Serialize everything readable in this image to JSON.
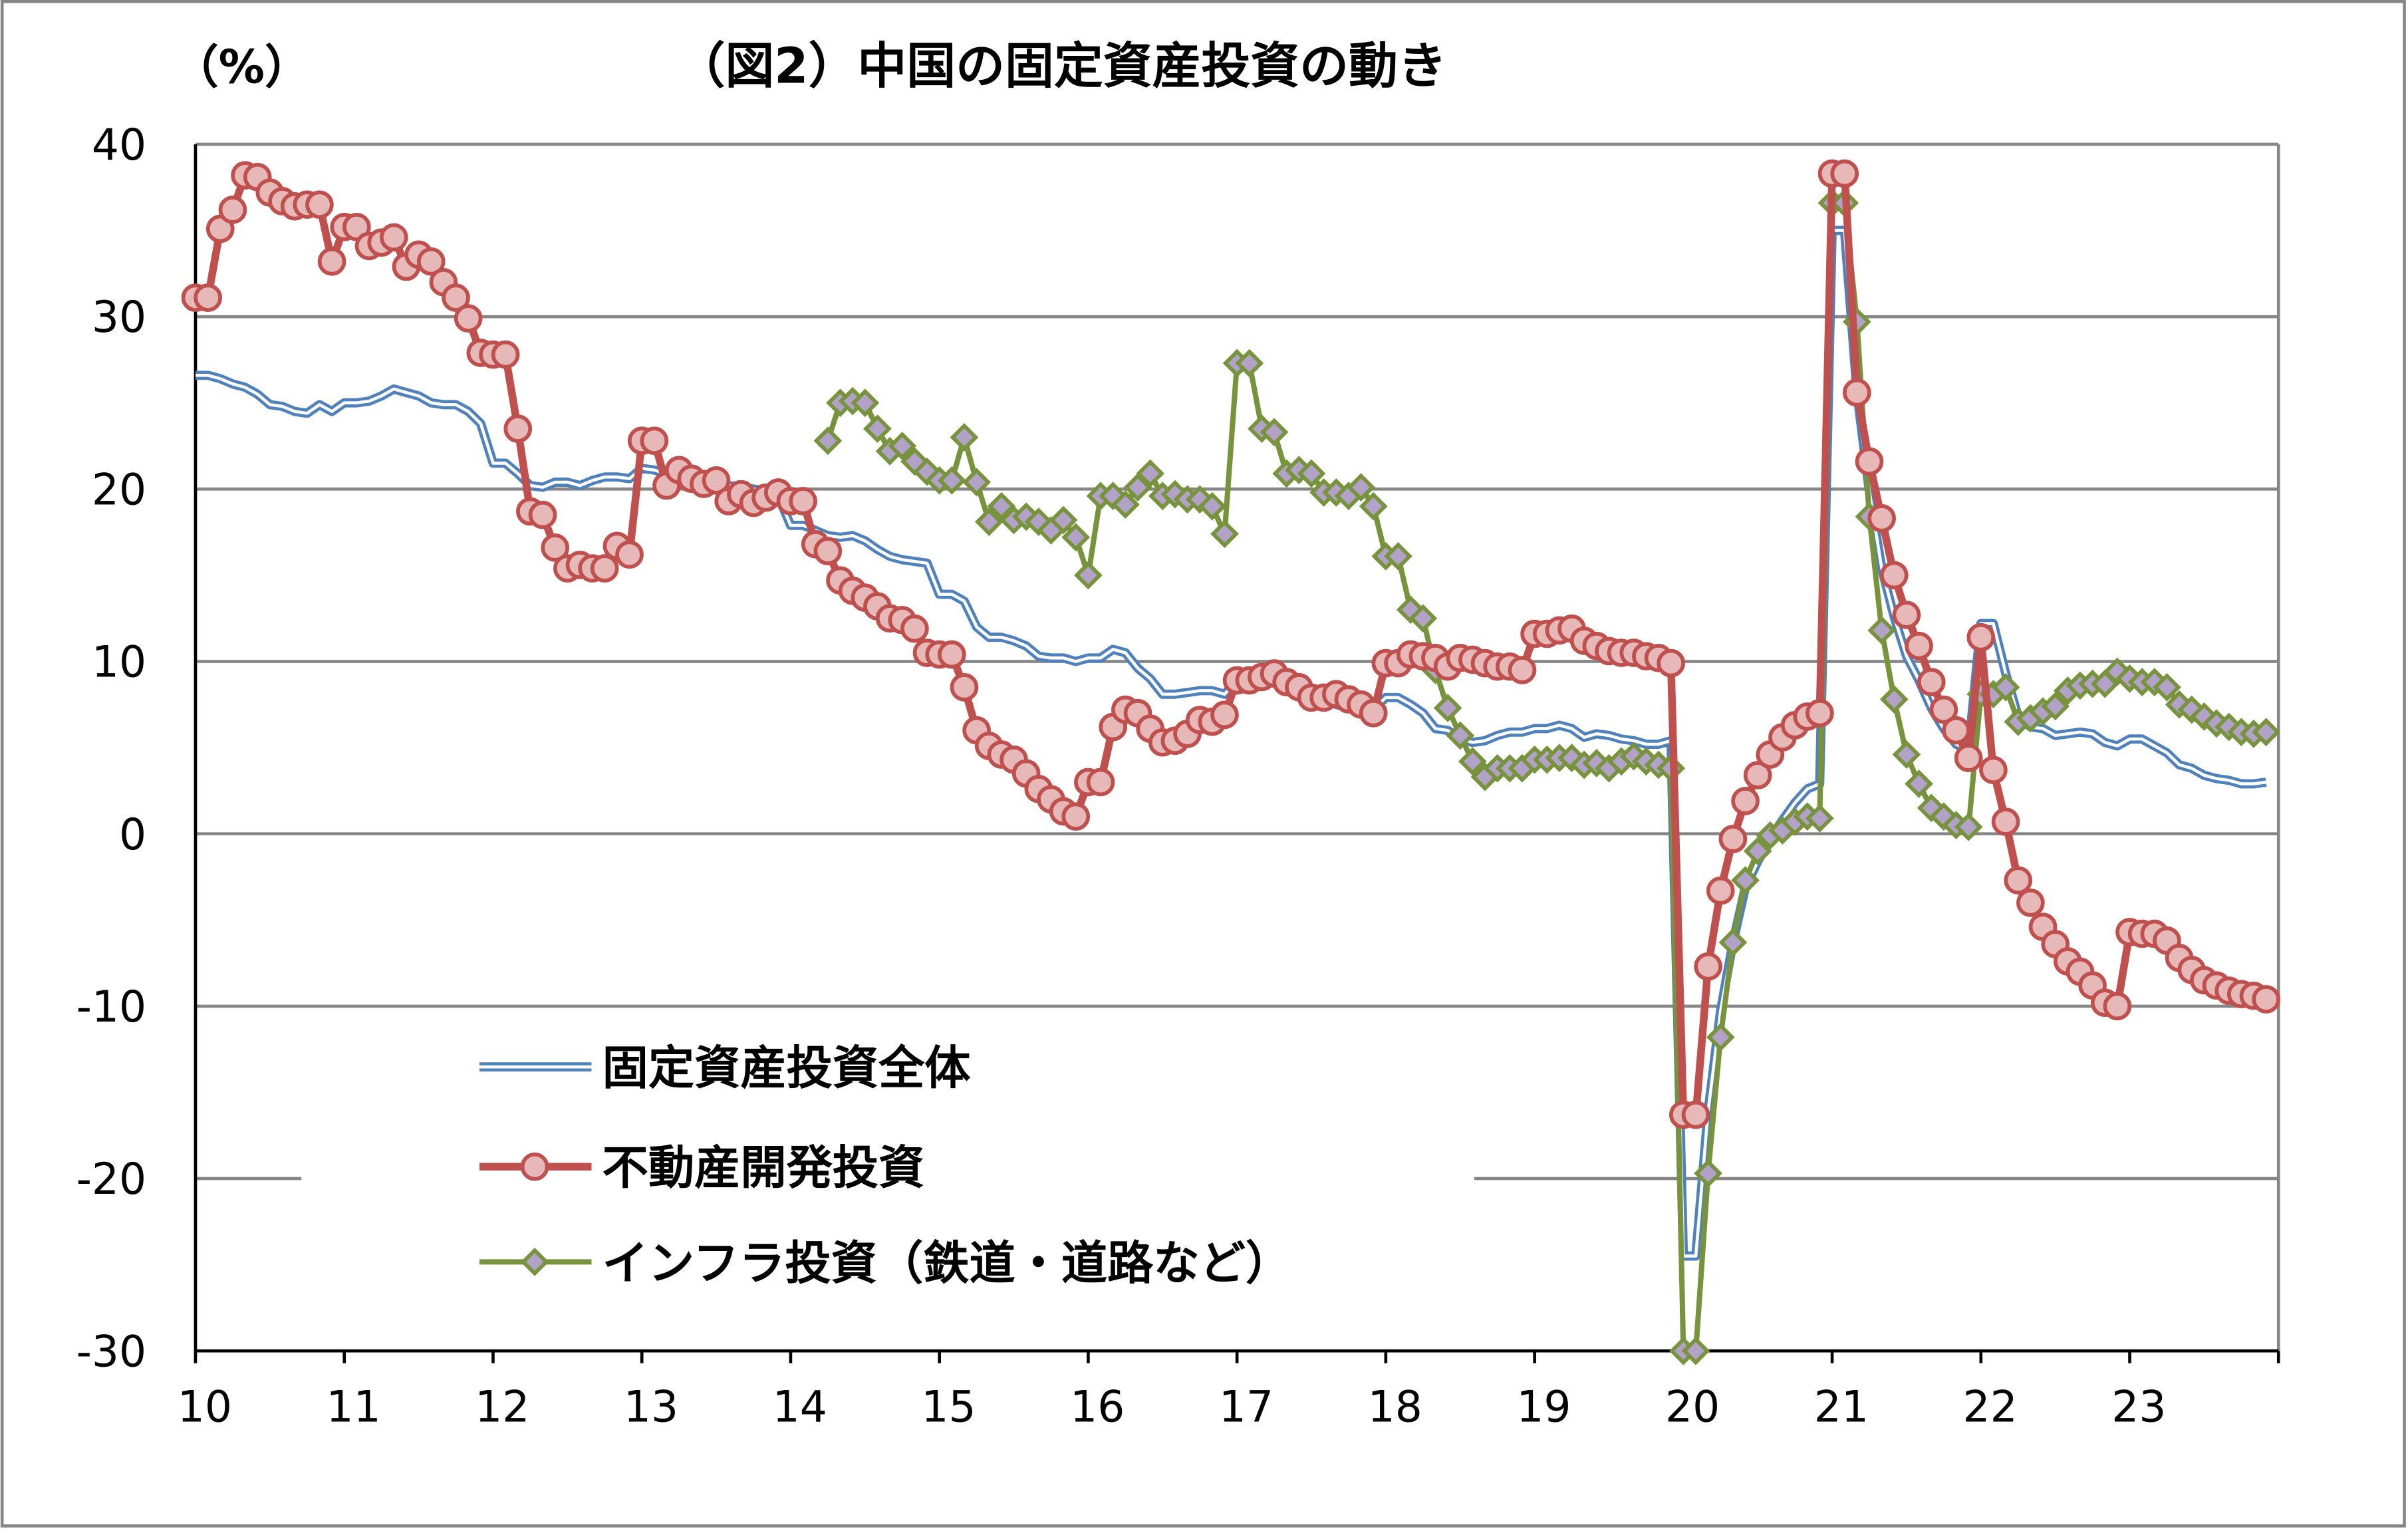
{
  "chart_data": {
    "type": "line",
    "title": "（図2）中国の固定資産投資の動き",
    "ylabel": "（%）",
    "xlabel": "",
    "ylim": [
      -30,
      40
    ],
    "yticks": [
      "40",
      "30",
      "20",
      "10",
      "0",
      "-10",
      "-20",
      "-30"
    ],
    "xticks": [
      "10",
      "11",
      "12",
      "13",
      "14",
      "15",
      "16",
      "17",
      "18",
      "19",
      "20",
      "21",
      "22",
      "23"
    ],
    "xlim": [
      "2010-01",
      "2024-01"
    ],
    "grid": "horizontal",
    "legend_placement": "bottom-left",
    "series": [
      {
        "name": "固定資産投資全体",
        "color": "#4F81BD",
        "style": "double-line",
        "start": "2010-01",
        "values": [
          26.6,
          26.6,
          26.4,
          26.1,
          25.9,
          25.5,
          24.9,
          24.8,
          24.5,
          24.4,
          24.9,
          24.5,
          25.0,
          25.0,
          25.1,
          25.4,
          25.8,
          25.6,
          25.4,
          25.0,
          24.9,
          24.9,
          24.5,
          23.8,
          21.5,
          21.5,
          20.9,
          20.2,
          20.1,
          20.4,
          20.4,
          20.2,
          20.5,
          20.7,
          20.7,
          20.6,
          21.2,
          21.1,
          20.9,
          20.6,
          20.4,
          20.1,
          20.3,
          20.2,
          20.1,
          20.0,
          19.9,
          19.6,
          17.9,
          17.9,
          17.6,
          17.3,
          17.2,
          17.3,
          17.0,
          16.5,
          16.1,
          15.9,
          15.8,
          15.7,
          13.9,
          13.9,
          13.5,
          12.0,
          11.4,
          11.4,
          11.2,
          10.9,
          10.3,
          10.2,
          10.2,
          10.0,
          10.2,
          10.2,
          10.7,
          10.5,
          9.6,
          9.0,
          8.1,
          8.1,
          8.2,
          8.3,
          8.3,
          8.1,
          8.9,
          8.9,
          9.2,
          8.9,
          8.6,
          8.6,
          8.3,
          7.8,
          7.5,
          7.3,
          7.2,
          7.2,
          7.9,
          7.9,
          7.5,
          7.0,
          6.1,
          6.0,
          5.5,
          5.3,
          5.4,
          5.7,
          5.9,
          5.9,
          6.1,
          6.1,
          6.3,
          6.1,
          5.6,
          5.8,
          5.7,
          5.5,
          5.4,
          5.2,
          5.2,
          5.4,
          -24.5,
          -24.5,
          -16.1,
          -10.3,
          -6.3,
          -3.1,
          -1.6,
          -0.3,
          0.8,
          1.8,
          2.6,
          2.9,
          35.0,
          35.0,
          25.6,
          19.9,
          15.4,
          12.6,
          10.3,
          8.9,
          7.3,
          6.1,
          5.2,
          4.9,
          12.2,
          12.2,
          9.3,
          6.8,
          6.2,
          6.1,
          5.7,
          5.8,
          5.9,
          5.8,
          5.3,
          5.1,
          5.5,
          5.5,
          5.1,
          4.7,
          4.0,
          3.8,
          3.4,
          3.2,
          3.1,
          2.9,
          2.9,
          3.0
        ]
      },
      {
        "name": "不動産開発投資",
        "color": "#C0504D",
        "marker": "circle",
        "marker_fill": "#E6B9B8",
        "start": "2010-01",
        "values": [
          31.1,
          31.1,
          35.1,
          36.2,
          38.2,
          38.1,
          37.2,
          36.7,
          36.4,
          36.5,
          36.5,
          33.2,
          35.2,
          35.2,
          34.1,
          34.3,
          34.6,
          32.9,
          33.6,
          33.2,
          32.0,
          31.1,
          29.9,
          27.9,
          27.8,
          27.8,
          23.5,
          18.7,
          18.5,
          16.6,
          15.4,
          15.6,
          15.4,
          15.4,
          16.7,
          16.2,
          22.8,
          22.8,
          20.2,
          21.1,
          20.6,
          20.3,
          20.5,
          19.3,
          19.7,
          19.2,
          19.5,
          19.8,
          19.3,
          19.3,
          16.8,
          16.4,
          14.7,
          14.1,
          13.7,
          13.2,
          12.5,
          12.4,
          11.9,
          10.5,
          10.4,
          10.4,
          8.5,
          6.0,
          5.1,
          4.6,
          4.3,
          3.5,
          2.6,
          2.0,
          1.3,
          1.0,
          3.0,
          3.0,
          6.2,
          7.2,
          7.0,
          6.1,
          5.3,
          5.4,
          5.8,
          6.6,
          6.5,
          6.9,
          8.9,
          8.9,
          9.1,
          9.3,
          8.8,
          8.5,
          7.9,
          7.9,
          8.1,
          7.8,
          7.5,
          7.0,
          9.9,
          9.9,
          10.4,
          10.3,
          10.2,
          9.7,
          10.2,
          10.1,
          9.9,
          9.7,
          9.7,
          9.5,
          11.6,
          11.6,
          11.8,
          11.9,
          11.2,
          10.9,
          10.6,
          10.5,
          10.5,
          10.3,
          10.2,
          9.9,
          -16.3,
          -16.3,
          -7.7,
          -3.3,
          -0.3,
          1.9,
          3.4,
          4.6,
          5.6,
          6.3,
          6.8,
          7.0,
          38.3,
          38.3,
          25.6,
          21.6,
          18.3,
          15.0,
          12.7,
          10.9,
          8.8,
          7.2,
          6.0,
          4.4,
          11.4,
          3.7,
          0.7,
          -2.7,
          -4.0,
          -5.4,
          -6.4,
          -7.4,
          -8.0,
          -8.8,
          -9.8,
          -10.0,
          -5.7,
          -5.8,
          -5.8,
          -6.2,
          -7.2,
          -7.9,
          -8.5,
          -8.8,
          -9.1,
          -9.3,
          -9.4,
          -9.6
        ]
      },
      {
        "name": "インフラ投資（鉄道・道路など）",
        "color": "#77933C",
        "marker": "diamond",
        "marker_fill": "#B3A2C7",
        "start": "2014-04",
        "values": [
          22.8,
          25.0,
          25.1,
          25.0,
          23.5,
          22.2,
          22.5,
          21.6,
          21.0,
          20.5,
          20.5,
          23.0,
          20.4,
          18.1,
          19.0,
          18.2,
          18.4,
          18.1,
          17.6,
          18.2,
          17.2,
          15.0,
          19.6,
          19.6,
          19.1,
          20.1,
          20.9,
          19.6,
          19.7,
          19.4,
          19.4,
          19.0,
          17.4,
          27.3,
          27.3,
          23.5,
          23.3,
          20.9,
          21.1,
          20.9,
          19.8,
          19.8,
          19.6,
          20.1,
          19.0,
          16.1,
          16.1,
          13.0,
          12.5,
          9.5,
          7.3,
          5.7,
          4.2,
          3.3,
          3.8,
          3.8,
          3.8,
          4.3,
          4.3,
          4.4,
          4.4,
          4.0,
          4.1,
          3.8,
          4.2,
          4.5,
          4.2,
          4.0,
          3.8,
          -30.3,
          -30.3,
          -19.7,
          -11.8,
          -6.3,
          -2.7,
          -1.0,
          -0.1,
          0.2,
          0.7,
          1.0,
          0.9,
          36.6,
          36.6,
          29.7,
          18.4,
          11.8,
          7.8,
          4.6,
          2.9,
          1.5,
          1.0,
          0.5,
          0.4,
          8.1,
          8.1,
          8.5,
          6.5,
          6.7,
          7.1,
          7.4,
          8.3,
          8.6,
          8.7,
          8.7,
          9.4,
          9.0,
          8.8,
          8.8,
          8.5,
          7.5,
          7.2,
          6.8,
          6.4,
          6.2,
          5.9,
          5.8,
          5.9
        ]
      }
    ]
  }
}
